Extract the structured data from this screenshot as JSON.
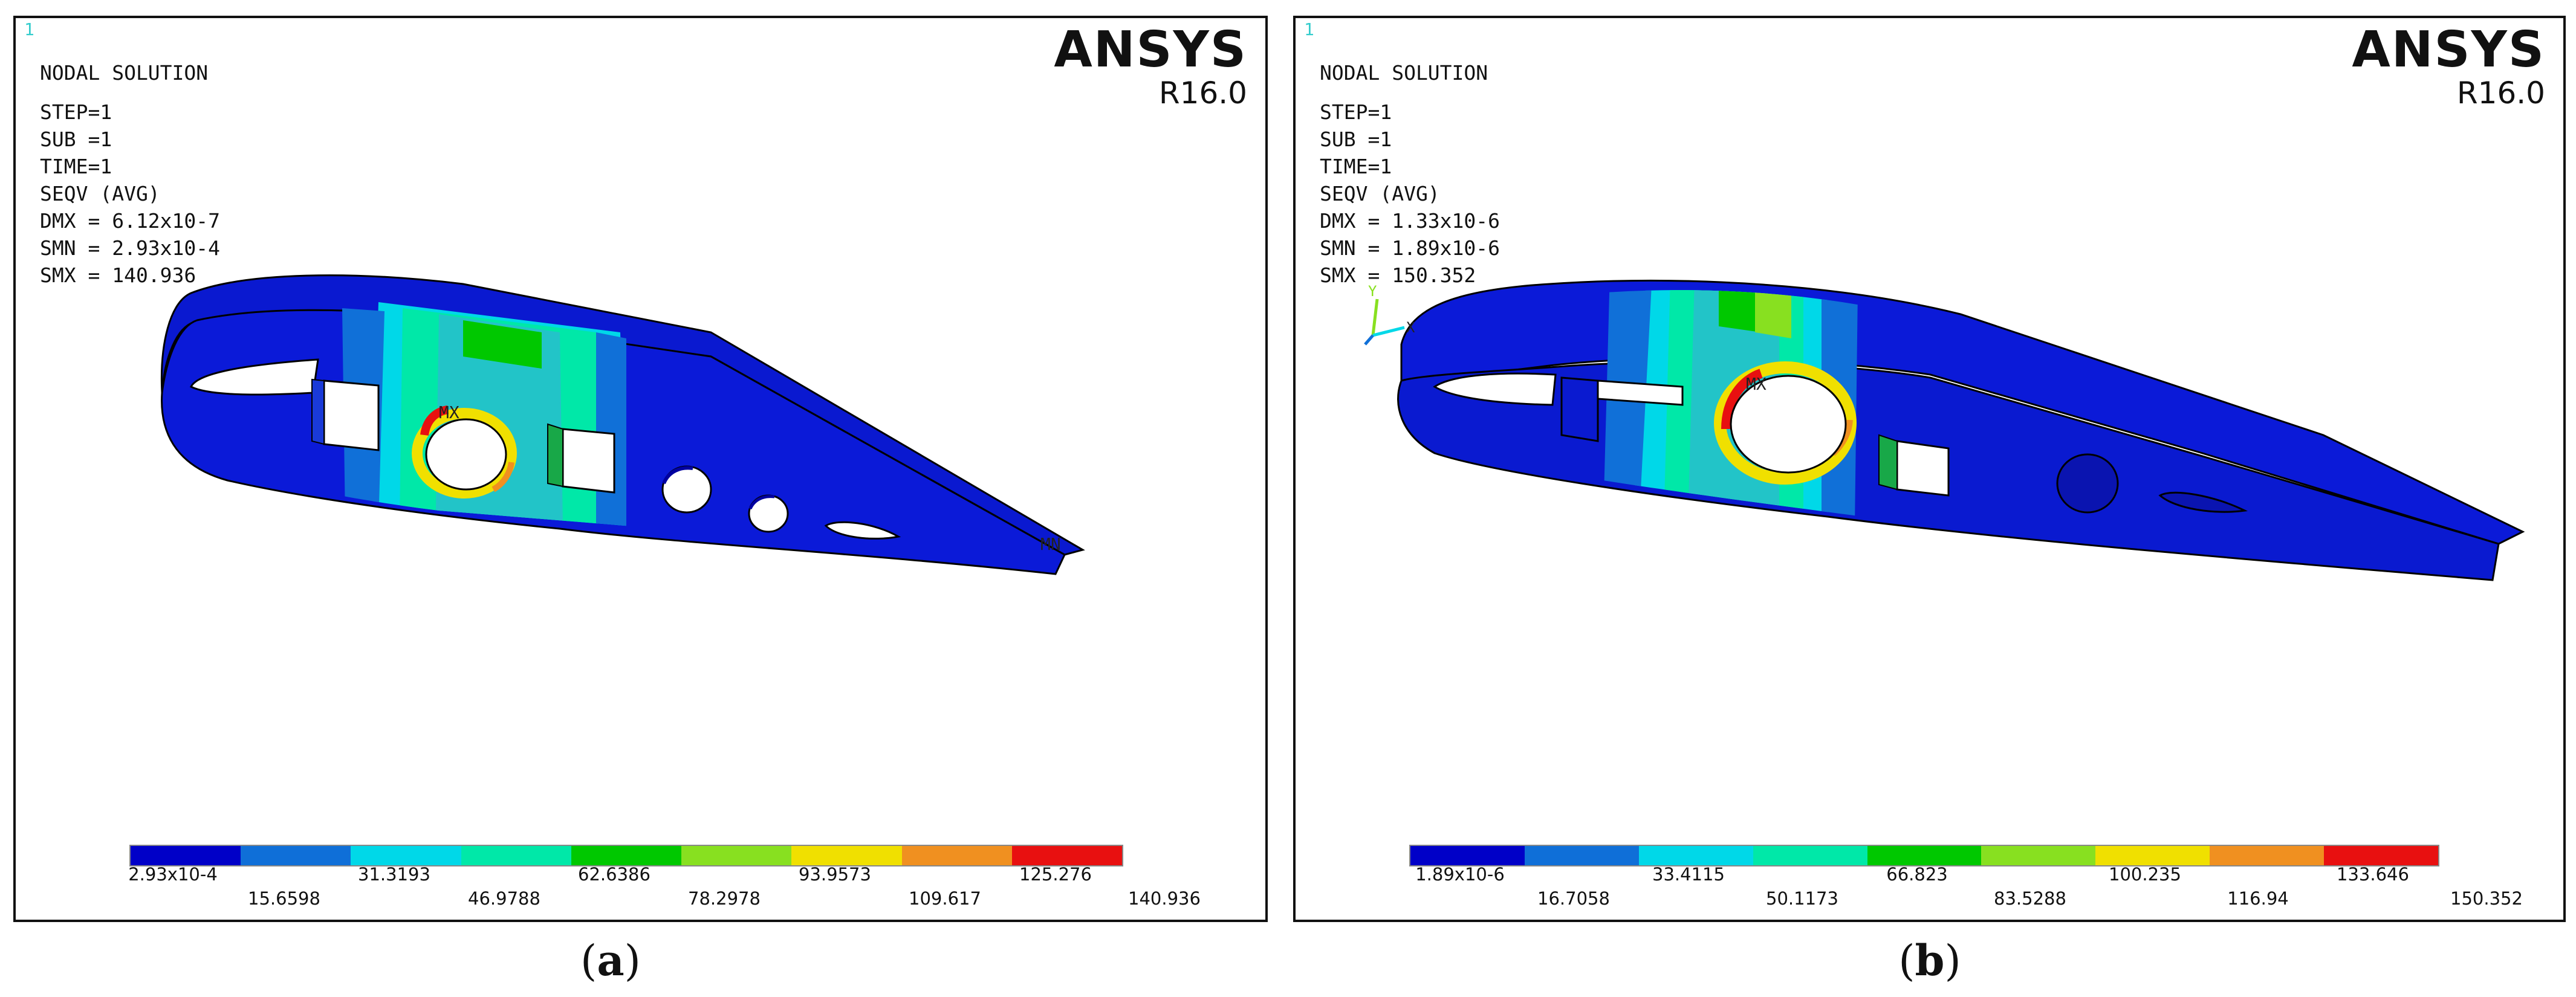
{
  "panels": [
    {
      "corner_mark": "1",
      "title": "NODAL SOLUTION",
      "step": "STEP=1",
      "sub": "SUB =1",
      "time": "TIME=1",
      "seqv": "SEQV    (AVG)",
      "dmx": "DMX  =  6.12x10-7",
      "smn": "SMN  =  2.93x10-4",
      "smx": "SMX  =  140.936",
      "brand": "ANSYS",
      "version": "R16.0",
      "mx_marker": "MX",
      "mn_marker": "MN",
      "legend_top": [
        "2.93x10-4",
        "31.3193",
        "62.6386",
        "93.9573",
        "125.276"
      ],
      "legend_bottom": [
        "15.6598",
        "46.9788",
        "78.2978",
        "109.617",
        "140.936"
      ],
      "caption_open": "(",
      "caption_letter": "a",
      "caption_close": ")"
    },
    {
      "corner_mark": "1",
      "title": "NODAL SOLUTION",
      "step": "STEP=1",
      "sub": "SUB =1",
      "time": "TIME=1",
      "seqv": "SEQV    (AVG)",
      "dmx": "DMX  =  1.33x10-6",
      "smn": "SMN  =  1.89x10-6",
      "smx": "SMX  =  150.352",
      "brand": "ANSYS",
      "version": "R16.0",
      "mx_marker": "MX",
      "axis_y": "Y",
      "axis_x": "X",
      "legend_top": [
        "1.89x10-6",
        "33.4115",
        "66.823",
        "100.235",
        "133.646"
      ],
      "legend_bottom": [
        "16.7058",
        "50.1173",
        "83.5288",
        "116.94",
        "150.352"
      ],
      "caption_open": "(",
      "caption_letter": "b",
      "caption_close": ")"
    }
  ],
  "colors": {
    "contour_scale": [
      "#0000c8",
      "#0f6fd8",
      "#00d8e8",
      "#00e8a8",
      "#00c800",
      "#88e020",
      "#f0e000",
      "#f09020",
      "#e81010"
    ],
    "frame": "#111111",
    "corner_mark": "#33cccc"
  },
  "icons": {
    "triad": "xyz-axis-triad-icon"
  }
}
